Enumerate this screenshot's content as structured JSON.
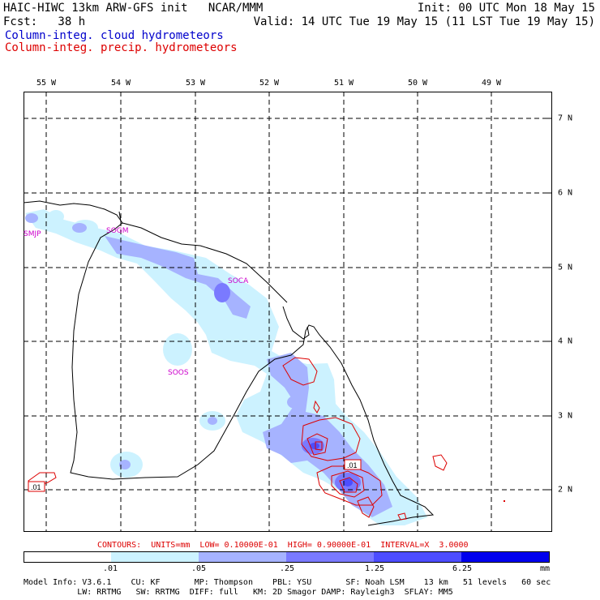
{
  "header": {
    "title": "HAIC-HIWC 13km ARW-GFS init   NCAR/MMM",
    "init": "Init: 00 UTC Mon 18 May 15",
    "fcst": "Fcst:   38 h",
    "valid": "Valid: 14 UTC Tue 19 May 15 (11 LST Tue 19 May 15)",
    "cloud_label": "Column-integ. cloud hydrometeors",
    "precip_label": "Column-integ. precip. hydrometeors",
    "cloud_color": "#0000cc",
    "precip_color": "#dd0000"
  },
  "map": {
    "lon_labels": [
      "55 W",
      "54 W",
      "53 W",
      "52 W",
      "51 W",
      "50 W",
      "49 W"
    ],
    "lat_labels": [
      "7 N",
      "6 N",
      "5 N",
      "4 N",
      "3 N",
      "2 N"
    ],
    "stations": [
      "SMJP",
      "SOGM",
      "SOCA",
      "SOOS"
    ],
    "contour_labels": [
      ".01",
      ".01"
    ]
  },
  "contour_info": "CONTOURS:  UNITS=mm  LOW= 0.10000E-01  HIGH= 0.90000E-01  INTERVAL=X  3.0000",
  "colorbar": {
    "ticks": [
      ".01",
      ".05",
      ".25",
      "1.25",
      "6.25"
    ],
    "unit": "mm",
    "colors": [
      "#ffffff",
      "#ccf2ff",
      "#a6b3ff",
      "#7a7aff",
      "#4d4dff",
      "#0000ee"
    ]
  },
  "footer": {
    "line1": "Model Info: V3.6.1    CU: KF       MP: Thompson    PBL: YSU       SF: Noah LSM    13 km   51 levels   60 sec",
    "line2": "           LW: RRTMG   SW: RRTMG  DIFF: full   KM: 2D Smagor DAMP: Rayleigh3  SFLAY: MM5"
  }
}
